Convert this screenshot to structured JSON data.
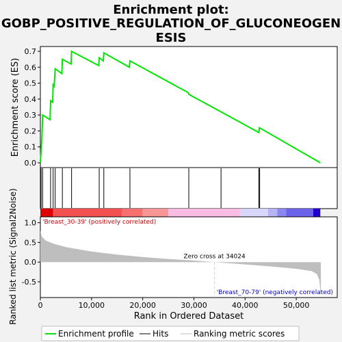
{
  "chart_data": {
    "type": "line",
    "title_lines": [
      "Enrichment plot:",
      "GOBP_POSITIVE_REGULATION_OF_GLUCONEOGEN",
      "ESIS"
    ],
    "es_panel": {
      "ylabel": "Enrichment score (ES)",
      "ylim": [
        -0.03,
        0.73
      ],
      "yticks": [
        "0.0",
        "0.1",
        "0.2",
        "0.3",
        "0.4",
        "0.5",
        "0.6",
        "0.7"
      ],
      "series_color": "#00e600",
      "points": [
        [
          0,
          0.0
        ],
        [
          300,
          0.15
        ],
        [
          450,
          0.3
        ],
        [
          1900,
          0.27
        ],
        [
          2000,
          0.39
        ],
        [
          2400,
          0.38
        ],
        [
          2500,
          0.49
        ],
        [
          2700,
          0.48
        ],
        [
          2900,
          0.59
        ],
        [
          4200,
          0.56
        ],
        [
          4300,
          0.65
        ],
        [
          6000,
          0.62
        ],
        [
          6100,
          0.7
        ],
        [
          11400,
          0.61
        ],
        [
          11500,
          0.66
        ],
        [
          12300,
          0.64
        ],
        [
          12400,
          0.69
        ],
        [
          17400,
          0.6
        ],
        [
          17500,
          0.64
        ],
        [
          28900,
          0.44
        ],
        [
          29000,
          0.43
        ],
        [
          35300,
          0.32
        ],
        [
          42700,
          0.19
        ],
        [
          42800,
          0.22
        ],
        [
          54700,
          0.0
        ]
      ]
    },
    "hits": [
      150,
      450,
      2000,
      2500,
      2900,
      4300,
      6100,
      11500,
      12400,
      17500,
      29000,
      35300,
      42700,
      42850
    ],
    "rank_panel": {
      "ylabel": "Ranked list metric (Signal2Noise)",
      "ylim": [
        -0.9,
        1.15
      ],
      "yticks": [
        "-0.5",
        "0.0",
        "0.5",
        "1.0"
      ],
      "fill_color": "#bebebe",
      "points": [
        [
          0,
          0.8
        ],
        [
          300,
          0.65
        ],
        [
          1000,
          0.55
        ],
        [
          2500,
          0.47
        ],
        [
          5000,
          0.38
        ],
        [
          10000,
          0.27
        ],
        [
          15000,
          0.19
        ],
        [
          20000,
          0.13
        ],
        [
          25000,
          0.08
        ],
        [
          30000,
          0.04
        ],
        [
          34024,
          0.0
        ],
        [
          38000,
          -0.04
        ],
        [
          42000,
          -0.08
        ],
        [
          46000,
          -0.12
        ],
        [
          50000,
          -0.17
        ],
        [
          53000,
          -0.23
        ],
        [
          54000,
          -0.3
        ],
        [
          54500,
          -0.45
        ],
        [
          54800,
          -0.85
        ]
      ],
      "zero_cross_label": "Zero cross at 34024",
      "zero_cross": 34024,
      "positive_label": "'Breast_30-39' (positively correlated)",
      "negative_label": "'Breast_70-79' (negatively correlated)",
      "positive_color": "#cc0000",
      "negative_color": "#0000cc"
    },
    "xaxis": {
      "label": "Rank in Ordered Dataset",
      "xlim": [
        0,
        58000
      ],
      "ticks": [
        0,
        10000,
        20000,
        30000,
        40000,
        50000
      ],
      "tick_labels": [
        "0",
        "10,000",
        "20,000",
        "30,000",
        "40,000",
        "50,000"
      ]
    },
    "legend": [
      {
        "label": "Enrichment profile",
        "color": "#00e600"
      },
      {
        "label": "Hits",
        "color": "#000000"
      },
      {
        "label": "Ranking metric scores",
        "color": "#bebebe"
      }
    ],
    "color_bar": [
      {
        "end": 2500,
        "color": "#dd0000"
      },
      {
        "end": 16000,
        "color": "#f35050"
      },
      {
        "end": 20000,
        "color": "#f67070"
      },
      {
        "end": 25000,
        "color": "#f89595"
      },
      {
        "end": 39000,
        "color": "#fbbce4"
      },
      {
        "end": 44500,
        "color": "#d9d6fb"
      },
      {
        "end": 46300,
        "color": "#b6b3f6"
      },
      {
        "end": 48000,
        "color": "#8c86f0"
      },
      {
        "end": 53300,
        "color": "#6b63ea"
      },
      {
        "end": 54700,
        "color": "#2200cc"
      }
    ]
  }
}
